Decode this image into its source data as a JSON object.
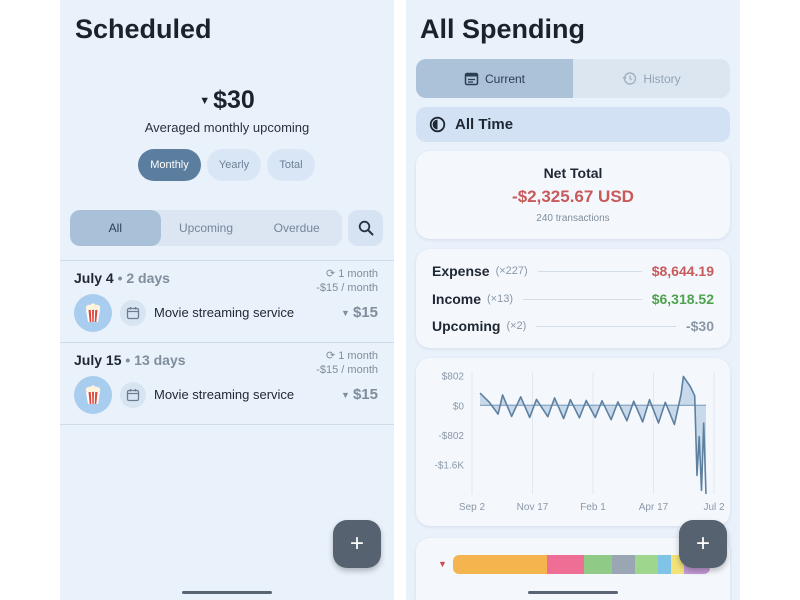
{
  "left": {
    "title": "Scheduled",
    "amount": "$30",
    "amount_caption": "Averaged monthly upcoming",
    "period_options": [
      "Monthly",
      "Yearly",
      "Total"
    ],
    "period_selected": "Monthly",
    "filter_tabs": [
      "All",
      "Upcoming",
      "Overdue"
    ],
    "filter_selected": "All",
    "items": [
      {
        "date": "July 4",
        "days": " • 2 days",
        "freq": "1 month",
        "per": "-$15 / month",
        "icon": "popcorn-icon",
        "name": "Movie streaming service",
        "amount": "$15"
      },
      {
        "date": "July 15",
        "days": " • 13 days",
        "freq": "1 month",
        "per": "-$15 / month",
        "icon": "popcorn-icon",
        "name": "Movie streaming service",
        "amount": "$15"
      }
    ],
    "fab_label": "+"
  },
  "right": {
    "title": "All Spending",
    "tabs": [
      "Current",
      "History"
    ],
    "tab_selected": "Current",
    "range_label": "All Time",
    "net_total_label": "Net Total",
    "net_total_value": "-$2,325.67 USD",
    "transactions": "240 transactions",
    "summary": [
      {
        "label": "Expense",
        "count": "(×227)",
        "value": "$8,644.19",
        "color": "#c85a5a"
      },
      {
        "label": "Income",
        "count": "(×13)",
        "value": "$6,318.52",
        "color": "#4ea24e"
      },
      {
        "label": "Upcoming",
        "count": "(×2)",
        "value": "-$30",
        "color": "#8a97a6"
      }
    ],
    "fab_label": "+"
  },
  "chart_data": {
    "type": "area",
    "title": "",
    "xlabel": "",
    "ylabel": "",
    "y_tick_labels": [
      "$802",
      "$0",
      "-$802",
      "-$1.6K"
    ],
    "y_ticks": [
      802,
      0,
      -802,
      -1604
    ],
    "x_tick_labels": [
      "Sep 2",
      "Nov 17",
      "Feb 1",
      "Apr 17",
      "Jul 2"
    ],
    "ylim": [
      -2400,
      900
    ],
    "x": [
      0,
      0.04,
      0.08,
      0.1,
      0.14,
      0.18,
      0.22,
      0.25,
      0.3,
      0.33,
      0.37,
      0.4,
      0.44,
      0.47,
      0.51,
      0.54,
      0.58,
      0.61,
      0.65,
      0.68,
      0.72,
      0.75,
      0.79,
      0.82,
      0.86,
      0.89,
      0.9,
      0.93,
      0.95,
      0.96,
      0.97,
      0.98,
      0.99,
      1.0
    ],
    "values": [
      330,
      90,
      -240,
      280,
      -300,
      230,
      -330,
      160,
      -310,
      200,
      -360,
      150,
      -340,
      130,
      -330,
      120,
      -390,
      90,
      -420,
      110,
      -450,
      150,
      -480,
      80,
      -520,
      300,
      780,
      510,
      260,
      -1900,
      -850,
      -2300,
      -480,
      -2400
    ],
    "color": "#5e80a0",
    "fill": "#a9c4df"
  },
  "category_bar": {
    "segments": [
      {
        "color": "#f5b54e",
        "fraction": 0.365
      },
      {
        "color": "#ef6e95",
        "fraction": 0.146
      },
      {
        "color": "#8fca86",
        "fraction": 0.108
      },
      {
        "color": "#9aa6b4",
        "fraction": 0.09
      },
      {
        "color": "#9dd68c",
        "fraction": 0.09
      },
      {
        "color": "#7fc3e6",
        "fraction": 0.05
      },
      {
        "color": "#f3e27a",
        "fraction": 0.05
      },
      {
        "color": "#c49bd7",
        "fraction": 0.101
      }
    ]
  }
}
